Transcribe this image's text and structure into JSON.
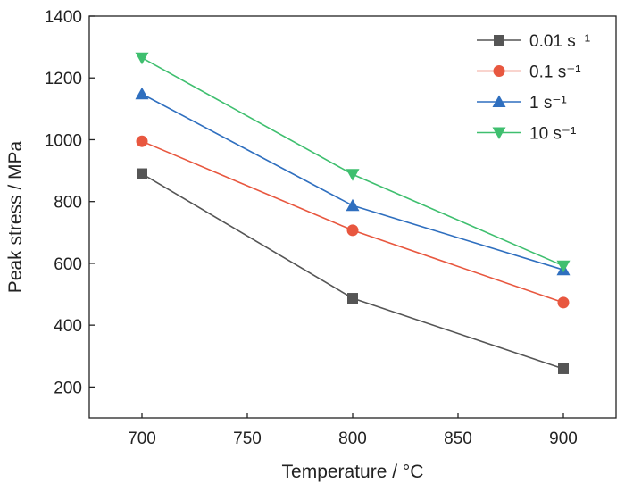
{
  "chart_data": {
    "type": "line",
    "x": [
      700,
      800,
      900
    ],
    "xlabel": "Temperature / °C",
    "ylabel": "Peak stress / MPa",
    "xlim": [
      675,
      925
    ],
    "ylim": [
      100,
      1400
    ],
    "xticks": [
      "700",
      "750",
      "800",
      "850",
      "900"
    ],
    "yticks": [
      "200",
      "400",
      "600",
      "800",
      "1000",
      "1200",
      "1400"
    ],
    "grid": false,
    "legend_position": "top-right",
    "series": [
      {
        "name": "0.01 s⁻¹",
        "marker": "square",
        "color": "#555555",
        "values": [
          890,
          487,
          259
        ]
      },
      {
        "name": "0.1 s⁻¹",
        "marker": "circle",
        "color": "#e8573f",
        "values": [
          995,
          707,
          473
        ]
      },
      {
        "name": "1 s⁻¹",
        "marker": "triangle-up",
        "color": "#2f6fbf",
        "values": [
          1148,
          787,
          579
        ]
      },
      {
        "name": "10 s⁻¹",
        "marker": "triangle-down",
        "color": "#3fbf6f",
        "values": [
          1265,
          888,
          592
        ]
      }
    ]
  }
}
